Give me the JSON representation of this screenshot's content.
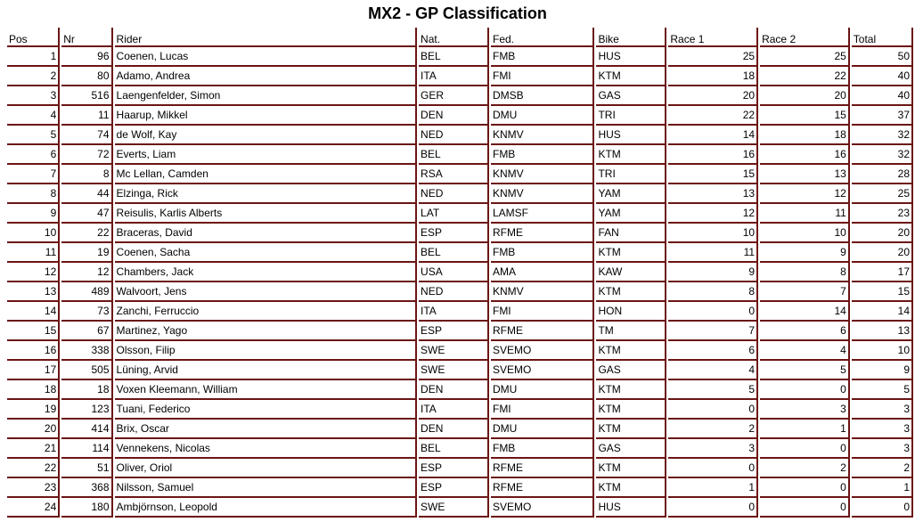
{
  "title": "MX2 - GP Classification",
  "columns": [
    "Pos",
    "Nr",
    "Rider",
    "Nat.",
    "Fed.",
    "Bike",
    "Race 1",
    "Race 2",
    "Total"
  ],
  "rows": [
    [
      "1",
      "96",
      "Coenen, Lucas",
      "BEL",
      "FMB",
      "HUS",
      "25",
      "25",
      "50"
    ],
    [
      "2",
      "80",
      "Adamo, Andrea",
      "ITA",
      "FMI",
      "KTM",
      "18",
      "22",
      "40"
    ],
    [
      "3",
      "516",
      "Laengenfelder, Simon",
      "GER",
      "DMSB",
      "GAS",
      "20",
      "20",
      "40"
    ],
    [
      "4",
      "11",
      "Haarup, Mikkel",
      "DEN",
      "DMU",
      "TRI",
      "22",
      "15",
      "37"
    ],
    [
      "5",
      "74",
      "de Wolf, Kay",
      "NED",
      "KNMV",
      "HUS",
      "14",
      "18",
      "32"
    ],
    [
      "6",
      "72",
      "Everts, Liam",
      "BEL",
      "FMB",
      "KTM",
      "16",
      "16",
      "32"
    ],
    [
      "7",
      "8",
      "Mc Lellan, Camden",
      "RSA",
      "KNMV",
      "TRI",
      "15",
      "13",
      "28"
    ],
    [
      "8",
      "44",
      "Elzinga, Rick",
      "NED",
      "KNMV",
      "YAM",
      "13",
      "12",
      "25"
    ],
    [
      "9",
      "47",
      "Reisulis, Karlis Alberts",
      "LAT",
      "LAMSF",
      "YAM",
      "12",
      "11",
      "23"
    ],
    [
      "10",
      "22",
      "Braceras, David",
      "ESP",
      "RFME",
      "FAN",
      "10",
      "10",
      "20"
    ],
    [
      "11",
      "19",
      "Coenen, Sacha",
      "BEL",
      "FMB",
      "KTM",
      "11",
      "9",
      "20"
    ],
    [
      "12",
      "12",
      "Chambers, Jack",
      "USA",
      "AMA",
      "KAW",
      "9",
      "8",
      "17"
    ],
    [
      "13",
      "489",
      "Walvoort, Jens",
      "NED",
      "KNMV",
      "KTM",
      "8",
      "7",
      "15"
    ],
    [
      "14",
      "73",
      "Zanchi, Ferruccio",
      "ITA",
      "FMI",
      "HON",
      "0",
      "14",
      "14"
    ],
    [
      "15",
      "67",
      "Martinez, Yago",
      "ESP",
      "RFME",
      "TM",
      "7",
      "6",
      "13"
    ],
    [
      "16",
      "338",
      "Olsson, Filip",
      "SWE",
      "SVEMO",
      "KTM",
      "6",
      "4",
      "10"
    ],
    [
      "17",
      "505",
      "Lüning, Arvid",
      "SWE",
      "SVEMO",
      "GAS",
      "4",
      "5",
      "9"
    ],
    [
      "18",
      "18",
      "Voxen Kleemann, William",
      "DEN",
      "DMU",
      "KTM",
      "5",
      "0",
      "5"
    ],
    [
      "19",
      "123",
      "Tuani, Federico",
      "ITA",
      "FMI",
      "KTM",
      "0",
      "3",
      "3"
    ],
    [
      "20",
      "414",
      "Brix, Oscar",
      "DEN",
      "DMU",
      "KTM",
      "2",
      "1",
      "3"
    ],
    [
      "21",
      "114",
      "Vennekens, Nicolas",
      "BEL",
      "FMB",
      "GAS",
      "3",
      "0",
      "3"
    ],
    [
      "22",
      "51",
      "Oliver, Oriol",
      "ESP",
      "RFME",
      "KTM",
      "0",
      "2",
      "2"
    ],
    [
      "23",
      "368",
      "Nilsson, Samuel",
      "ESP",
      "RFME",
      "KTM",
      "1",
      "0",
      "1"
    ],
    [
      "24",
      "180",
      "Ambjörnson, Leopold",
      "SWE",
      "SVEMO",
      "HUS",
      "0",
      "0",
      "0"
    ]
  ],
  "colors": {
    "border": "#6b1515"
  }
}
